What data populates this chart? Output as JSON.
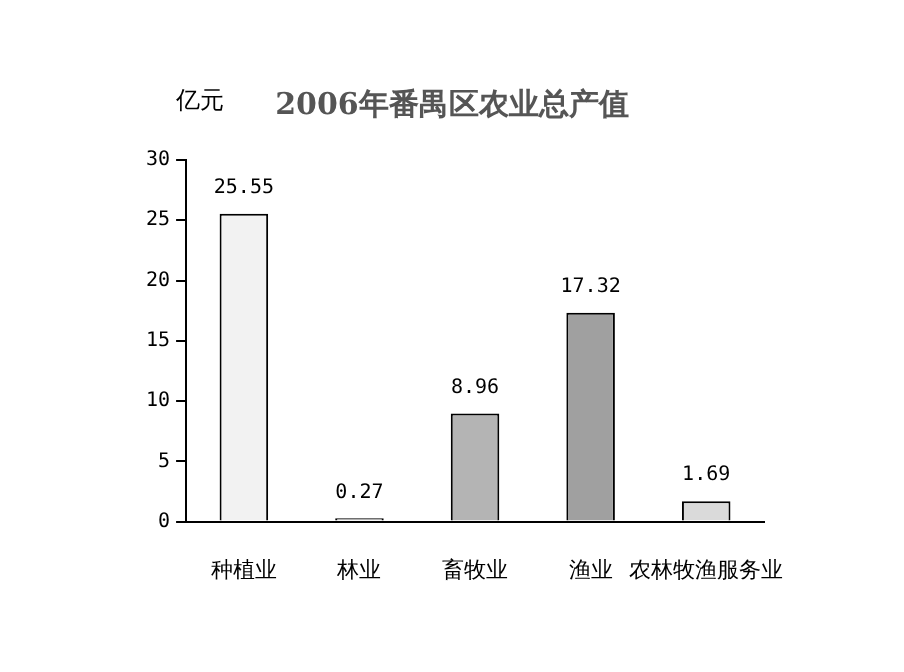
{
  "chart_data": {
    "type": "bar",
    "title": "2006年番禺区农业总产值",
    "ylabel": "亿元",
    "categories": [
      "种植业",
      "林业",
      "畜牧业",
      "渔业",
      "农林牧渔服务业"
    ],
    "values": [
      25.55,
      0.27,
      8.96,
      17.32,
      1.69
    ],
    "colors": [
      "#f2f2f2",
      "#e0e0e0",
      "#b4b4b4",
      "#a0a0a0",
      "#dadada"
    ],
    "ylim": [
      0,
      30
    ],
    "yticks": [
      0,
      5,
      10,
      15,
      20,
      25,
      30
    ],
    "grid": false,
    "legend": false,
    "data_labels": true
  }
}
